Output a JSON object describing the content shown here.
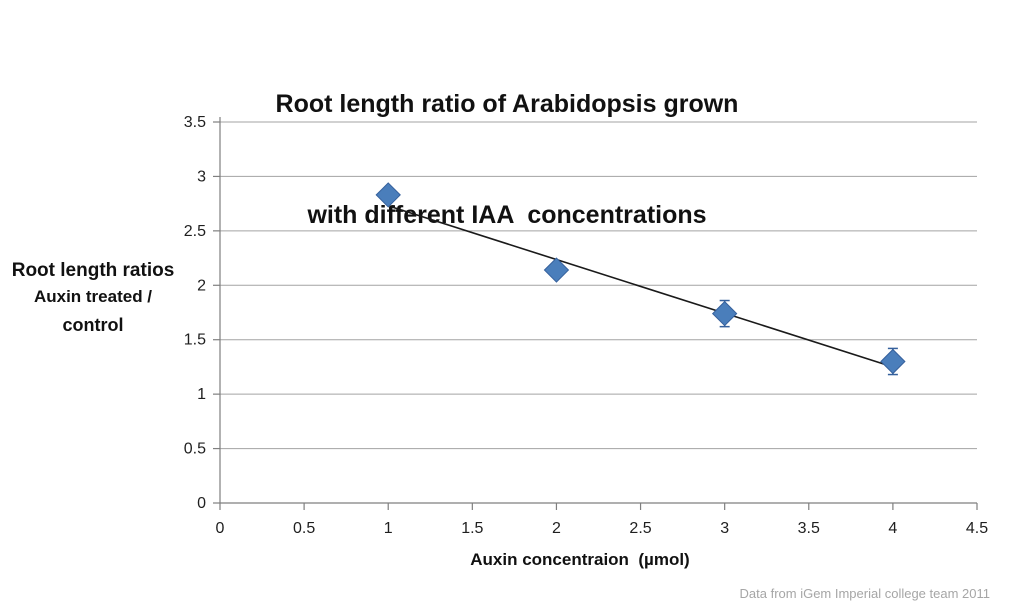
{
  "title": {
    "line1": "Root length ratio of Arabidopsis grown",
    "line2": "with different IAA  concentrations"
  },
  "y_axis_label": {
    "line1": "Root length ratios",
    "line2": "Auxin treated /",
    "line3": "control"
  },
  "x_axis_label": "Auxin concentraion  (µmol)",
  "footer": "Data from iGem Imperial college team 2011",
  "colors": {
    "marker_fill": "#4a7ebb",
    "marker_border": "#35609c",
    "error_bar": "#35609c",
    "trendline": "#1a1a1a",
    "gridline": "#a3a3a3",
    "axis": "#7f7f7f",
    "tick_text": "#1f1f1f",
    "footer_text": "#a6a6a6",
    "title_text": "#111111"
  },
  "chart_data": {
    "type": "scatter",
    "title": "Root length ratio of Arabidopsis grown with different IAA  concentrations",
    "xlabel": "Auxin concentraion  (µmol)",
    "ylabel": "Root length ratios Auxin treated / control",
    "marker": "diamond",
    "grid": "horizontal",
    "legend": "none",
    "xlim": [
      0,
      4.5
    ],
    "ylim": [
      0,
      3.5
    ],
    "x_ticks": [
      0,
      0.5,
      1,
      1.5,
      2,
      2.5,
      3,
      3.5,
      4,
      4.5
    ],
    "y_ticks": [
      0,
      0.5,
      1,
      1.5,
      2,
      2.5,
      3,
      3.5
    ],
    "series": [
      {
        "name": "Root length ratio (Auxin treated / control)",
        "points": [
          {
            "x": 1,
            "y": 2.83,
            "err": 0
          },
          {
            "x": 2,
            "y": 2.14,
            "err": 0
          },
          {
            "x": 3,
            "y": 1.74,
            "err": 0.12
          },
          {
            "x": 4,
            "y": 1.3,
            "err": 0.12
          }
        ]
      }
    ],
    "trendline": {
      "type": "linear",
      "x1": 1.02,
      "y1": 2.72,
      "x2": 3.98,
      "y2": 1.26
    },
    "annotation": "Data from iGem Imperial college team 2011"
  }
}
